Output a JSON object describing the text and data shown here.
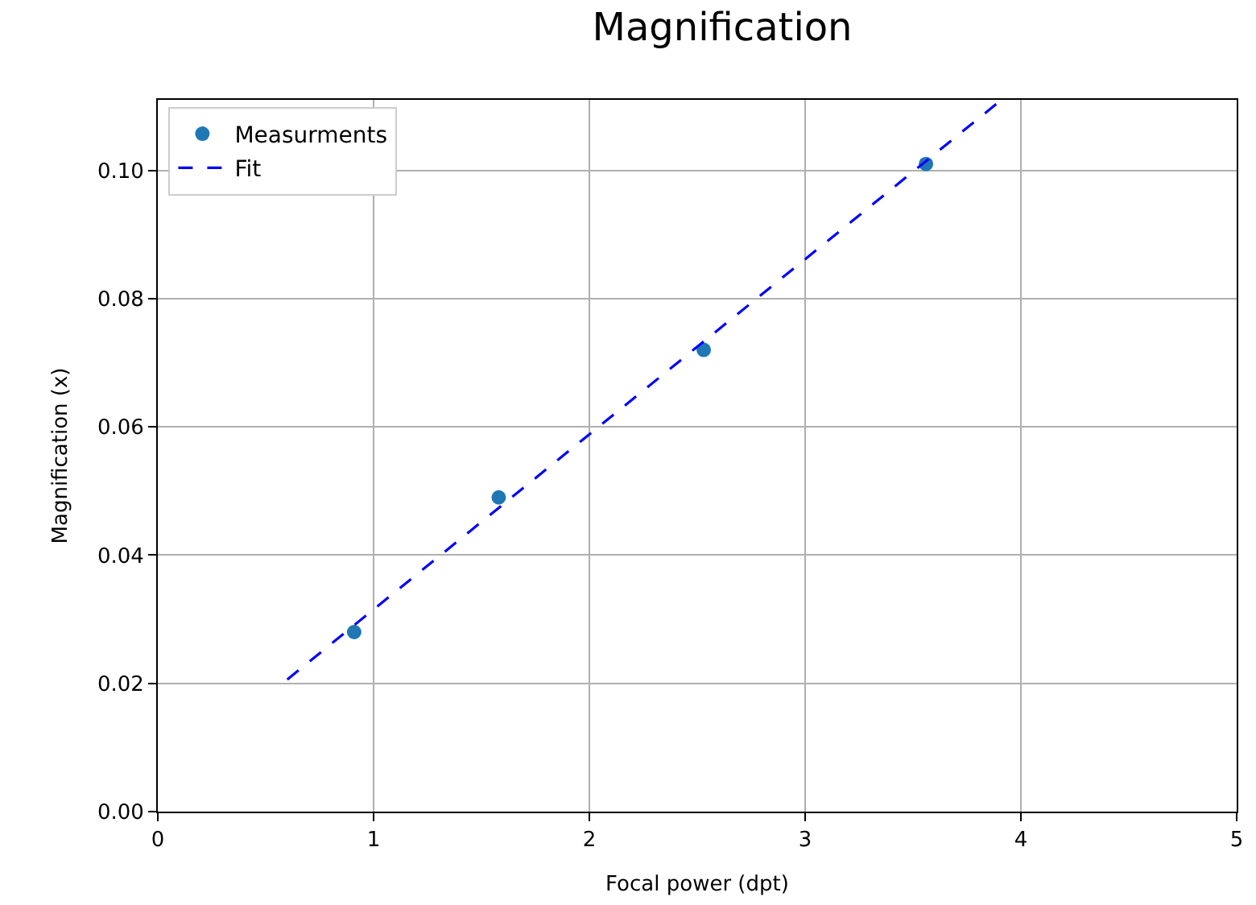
{
  "chart_data": {
    "type": "scatter",
    "title": "Magnification",
    "xlabel": "Focal power (dpt)",
    "ylabel": "Magnification (x)",
    "xlim": [
      0,
      5
    ],
    "xticks": [
      0,
      1,
      2,
      3,
      4,
      5
    ],
    "ylim": [
      0,
      0.111
    ],
    "yticks": [
      {
        "value": 0,
        "label": "0.00"
      },
      {
        "value": 0.02,
        "label": "0.02"
      },
      {
        "value": 0.04,
        "label": "0.04"
      },
      {
        "value": 0.06,
        "label": "0.06"
      },
      {
        "value": 0.08,
        "label": "0.08"
      },
      {
        "value": 0.1,
        "label": "0.10"
      }
    ],
    "grid": true,
    "legend": "top left",
    "series": [
      {
        "name": "Measurments",
        "marker": "circle",
        "color": "#1f77b4",
        "x": [
          0.91,
          1.58,
          2.53,
          3.56
        ],
        "values": [
          0.028,
          0.049,
          0.072,
          0.101
        ]
      },
      {
        "name": "Fit",
        "type": "line",
        "line_style": "dashed",
        "marker": "none",
        "color": "#0000ff",
        "x": [
          0.6,
          3.91
        ],
        "values": [
          0.0206,
          0.111
        ]
      }
    ]
  }
}
